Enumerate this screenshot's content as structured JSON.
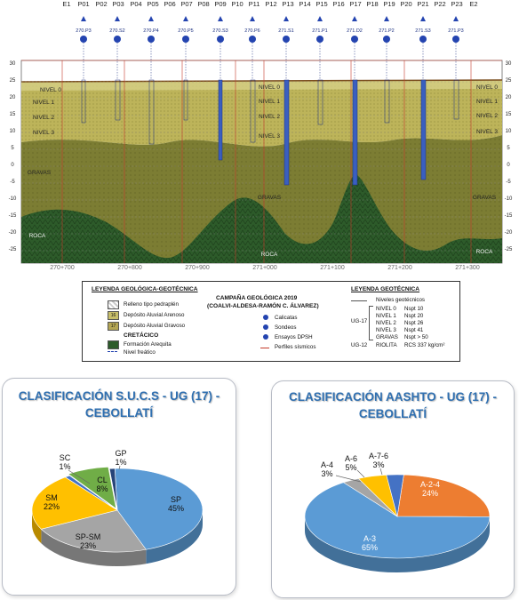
{
  "section": {
    "point_labels": [
      "E1",
      "P01",
      "P02",
      "P03",
      "P04",
      "P05",
      "P06",
      "P07",
      "P08",
      "P09",
      "P10",
      "P11",
      "P12",
      "P13",
      "P14",
      "P15",
      "P16",
      "P17",
      "P18",
      "P19",
      "P20",
      "P21",
      "P22",
      "P23",
      "E2"
    ],
    "probe_codes": [
      "270.P3",
      "270.S2",
      "270.P4",
      "270.P5",
      "270.S3",
      "270.P6",
      "271.S1",
      "271.P1",
      "271.D2",
      "271.P2",
      "271.S3",
      "271.P3"
    ],
    "y_ticks": [
      "30",
      "25",
      "20",
      "15",
      "10",
      "5",
      "0",
      "-5",
      "-10",
      "-15",
      "-20",
      "-25"
    ],
    "x_ticks": [
      "270+700",
      "270+800",
      "270+900",
      "271+000",
      "271+100",
      "271+200",
      "271+300"
    ],
    "level_labels_left": [
      "NIVEL 0",
      "NIVEL 1",
      "NIVEL 2",
      "NIVEL 3"
    ],
    "level_labels_mid": [
      "NIVEL 0",
      "NIVEL 1",
      "NIVEL 2",
      "NIVEL 3"
    ],
    "level_labels_right": [
      "NIVEL 0",
      "NIVEL 1",
      "NIVEL 2",
      "NIVEL 3"
    ],
    "gravas_labels": [
      "GRAVAS",
      "GRAVAS",
      "GRAVAS"
    ],
    "roca_labels": [
      "ROCA",
      "ROCA",
      "ROCA"
    ]
  },
  "legend": {
    "title_left": "LEYENDA GEOLÓGICA-GEOTÉCNICA",
    "items_left": [
      "Relleno tipo pedraplén",
      "Depósito Aluvial Arenoso",
      "Depósito Aluvial Gravoso",
      "CRETÁCICO",
      "Formación Arequita",
      "Nivel freático"
    ],
    "swatch_codes": [
      "16",
      "17"
    ],
    "campaign_title": "CAMPAÑA GEOLÓGICA 2019",
    "campaign_subtitle": "(COALVI-ALDESA-RAMÓN C. ÁLVAREZ)",
    "items_mid": [
      "Calicatas",
      "Sondeos",
      "Ensayos DPSH",
      "Perfiles sísmicos"
    ],
    "title_right": "LEYENDA GEOTÉCNICA",
    "niveles_label": "Niveles geotécnicos",
    "ug17_label": "UG-17",
    "ug12_label": "UG-12",
    "nivel_rows": [
      {
        "name": "NIVEL 0",
        "value": "Nspt 10"
      },
      {
        "name": "NIVEL 1",
        "value": "Nspt 20"
      },
      {
        "name": "NIVEL 2",
        "value": "Nspt 26"
      },
      {
        "name": "NIVEL 3",
        "value": "Nspt 41"
      },
      {
        "name": "GRAVAS",
        "value": "Nspt > 50"
      }
    ],
    "riolita_name": "RIOLITA",
    "riolita_value": "RCS 337 kg/cm²"
  },
  "chart_data": [
    {
      "type": "pie",
      "title": "CLASIFICACIÓN  S.U.C.S  - UG (17) - CEBOLLATÍ",
      "categories": [
        "SP",
        "SP-SM",
        "SM",
        "SC",
        "CL",
        "GP"
      ],
      "values": [
        45,
        23,
        22,
        1,
        8,
        1
      ],
      "labels": [
        "SP\n45%",
        "SP-SM\n23%",
        "SM\n22%",
        "SC\n1%",
        "CL\n8%",
        "GP\n1%"
      ],
      "colors": [
        "#5b9bd5",
        "#a5a5a5",
        "#ffc000",
        "#4472c4",
        "#70ad47",
        "#264478"
      ]
    },
    {
      "type": "pie",
      "title": "CLASIFICACIÓN  AASHTO  - UG (17) - CEBOLLATÍ",
      "categories": [
        "A-2-4",
        "A-3",
        "A-4",
        "A-6",
        "A-7-6"
      ],
      "values": [
        24,
        65,
        3,
        5,
        3
      ],
      "labels": [
        "A-2-4\n24%",
        "A-3\n65%",
        "A-4\n3%",
        "A-6\n5%",
        "A-7-6\n3%"
      ],
      "colors": [
        "#ed7d31",
        "#5b9bd5",
        "#a5a5a5",
        "#ffc000",
        "#4472c4"
      ]
    }
  ]
}
